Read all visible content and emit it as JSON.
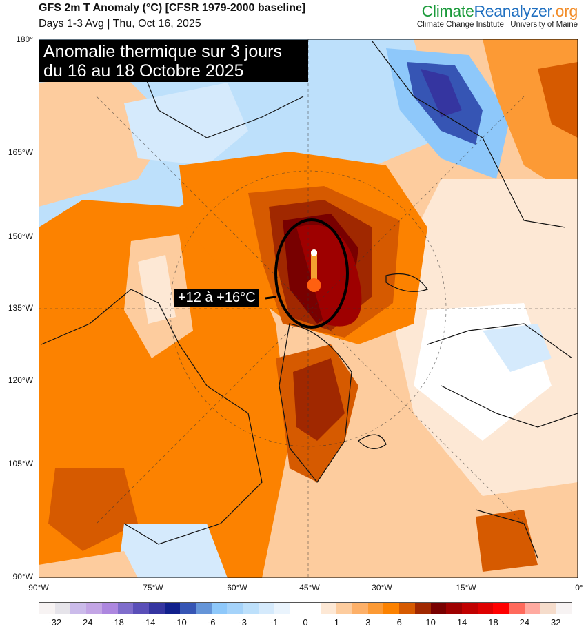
{
  "header": {
    "title": "GFS 2m T Anomaly (°C) [CFSR 1979-2000 baseline]",
    "subtitle": "Days 1-3 Avg | Thu, Oct 16, 2025"
  },
  "brand": {
    "part1": "Climate",
    "part2": "Reanalyzer",
    ".org": ".org",
    "tagline": "Climate Change Institute | University of Maine"
  },
  "overlay": {
    "title_line1": "Anomalie thermique sur 3 jours",
    "title_line2": "du 16 au 18 Octobre 2025",
    "callout": "+12 à +16°C",
    "icon": "thermometer-icon"
  },
  "axes": {
    "left": [
      "180°",
      "165°W",
      "150°W",
      "135°W",
      "120°W",
      "105°W",
      "90°W"
    ],
    "bottom": [
      "90°W",
      "75°W",
      "60°W",
      "45°W",
      "30°W",
      "15°W",
      "0°"
    ]
  },
  "colorbar": {
    "labels": [
      "-32",
      "-24",
      "-18",
      "-14",
      "-10",
      "-6",
      "-3",
      "-1",
      "0",
      "1",
      "3",
      "6",
      "10",
      "14",
      "18",
      "24",
      "32"
    ],
    "colors": [
      "#f7f3f3",
      "#e6e4ea",
      "#cbbbea",
      "#c3a5e5",
      "#ad87df",
      "#7f6dcb",
      "#5a4fb8",
      "#3535a0",
      "#11208c",
      "#3655b4",
      "#6595d8",
      "#8ec8fa",
      "#a5d3fa",
      "#bde0fb",
      "#d5eafc",
      "#eaf4fd",
      "#ffffff",
      "#ffffff",
      "#fde8d5",
      "#fdcc9e",
      "#fdb068",
      "#fc9a35",
      "#fc8200",
      "#d65a00",
      "#a02800",
      "#780000",
      "#9e0000",
      "#c00000",
      "#de0000",
      "#ff0000",
      "#ff6a5c",
      "#ffaaa0",
      "#f5dccb",
      "#f7f3f3"
    ]
  }
}
